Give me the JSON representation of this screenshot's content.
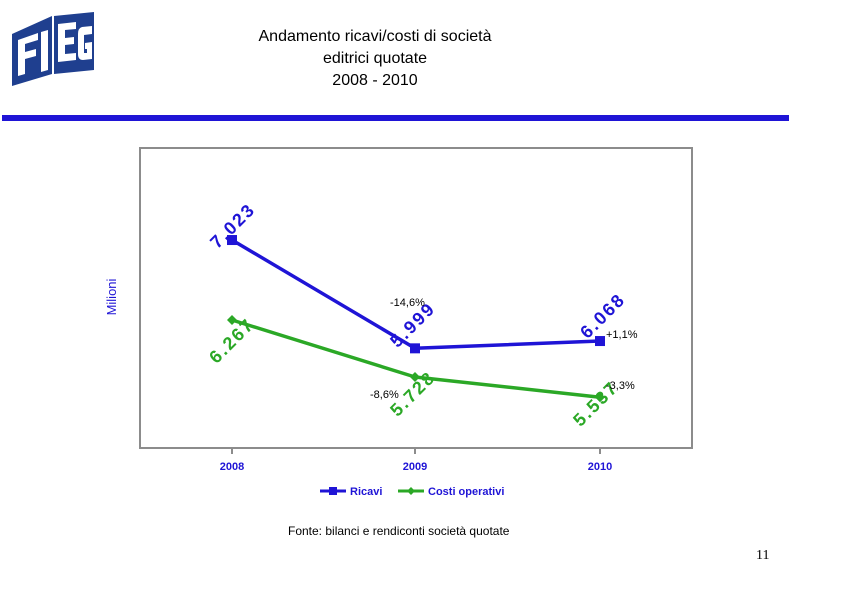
{
  "header": {
    "title_lines": [
      "Andamento ricavi/costi di società",
      "editrici quotate",
      "2008 - 2010"
    ]
  },
  "logo": {
    "text": "FIEG"
  },
  "chart_data": {
    "type": "line",
    "categories": [
      "2008",
      "2009",
      "2010"
    ],
    "ylabel": "Milioni",
    "ylim": [
      5000,
      7600
    ],
    "series": [
      {
        "name": "Ricavi",
        "values": [
          7023,
          5999,
          6068
        ],
        "color": "#1f14d6",
        "marker": "square",
        "labels": [
          "7.023",
          "5.999",
          "6.068"
        ]
      },
      {
        "name": "Costi operativi",
        "values": [
          6267,
          5728,
          5537
        ],
        "color": "#2ba826",
        "marker": "diamond",
        "labels": [
          "6.267",
          "5.728",
          "5.537"
        ]
      }
    ],
    "annotations": [
      {
        "text": "-14,6%",
        "series": "Ricavi",
        "segment": "2008-2009"
      },
      {
        "text": "+1,1%",
        "series": "Ricavi",
        "segment": "2009-2010"
      },
      {
        "text": "-8,6%",
        "series": "Costi operativi",
        "segment": "2008-2009"
      },
      {
        "text": "-3,3%",
        "series": "Costi operativi",
        "segment": "2009-2010"
      }
    ],
    "legend": "bottom"
  },
  "footer": {
    "source": "Fonte: bilanci e rendiconti società quotate",
    "page_number": "11"
  }
}
